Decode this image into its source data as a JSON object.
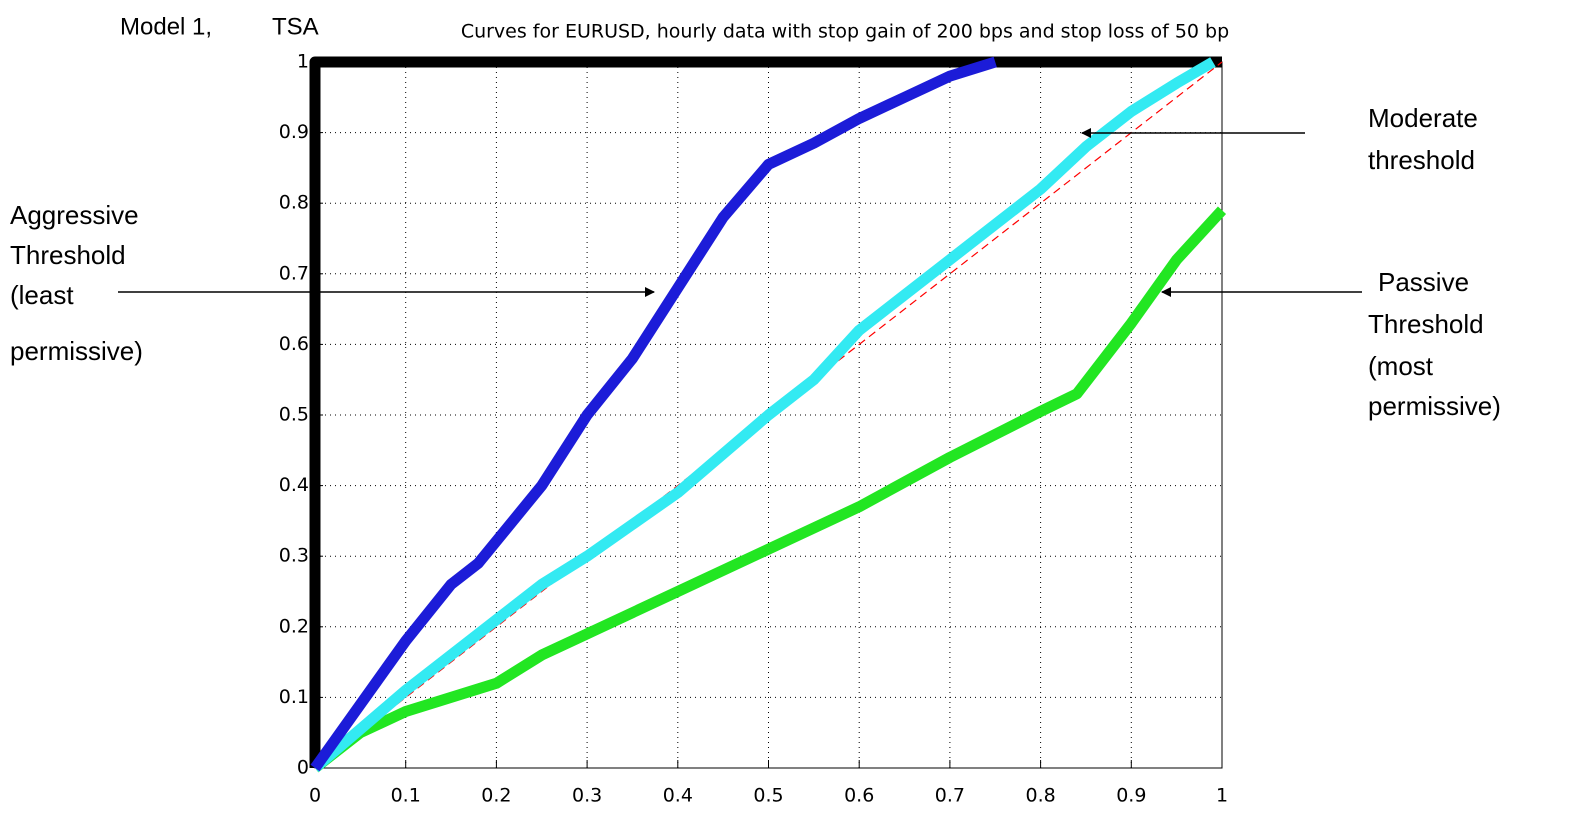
{
  "chart_data": {
    "type": "line",
    "title": "Curves for EURUSD, hourly data with stop gain of 200 bps and stop loss of 50 bp",
    "model": "Model 1,",
    "method": "TSA",
    "xlim": [
      0,
      1
    ],
    "ylim": [
      0,
      1
    ],
    "xticks": [
      0,
      0.1,
      0.2,
      0.3,
      0.4,
      0.5,
      0.6,
      0.7,
      0.8,
      0.9,
      1
    ],
    "yticks": [
      0,
      0.1,
      0.2,
      0.3,
      0.4,
      0.5,
      0.6,
      0.7,
      0.8,
      0.9,
      1
    ],
    "grid": true,
    "series": [
      {
        "color": "#000000",
        "x": [
          0,
          0,
          1
        ],
        "y": [
          0,
          1,
          1
        ]
      },
      {
        "color": "#ff0000",
        "dashed": true,
        "x": [
          0,
          1
        ],
        "y": [
          0,
          1
        ]
      },
      {
        "color": "#22e622",
        "x": [
          0,
          0.05,
          0.1,
          0.2,
          0.25,
          0.3,
          0.4,
          0.5,
          0.6,
          0.7,
          0.8,
          0.84,
          0.9,
          0.95,
          1
        ],
        "y": [
          0,
          0.05,
          0.08,
          0.12,
          0.16,
          0.19,
          0.25,
          0.31,
          0.37,
          0.44,
          0.505,
          0.53,
          0.63,
          0.72,
          0.79
        ]
      },
      {
        "color": "#33eaf2",
        "x": [
          0,
          0.1,
          0.2,
          0.25,
          0.3,
          0.4,
          0.5,
          0.55,
          0.6,
          0.7,
          0.8,
          0.85,
          0.9,
          0.95,
          0.99
        ],
        "y": [
          0,
          0.11,
          0.21,
          0.26,
          0.3,
          0.39,
          0.5,
          0.55,
          0.62,
          0.72,
          0.82,
          0.88,
          0.93,
          0.97,
          1
        ]
      },
      {
        "color": "#1c1cd8",
        "x": [
          0,
          0.05,
          0.1,
          0.15,
          0.18,
          0.25,
          0.3,
          0.35,
          0.4,
          0.45,
          0.5,
          0.55,
          0.6,
          0.65,
          0.7,
          0.75
        ],
        "y": [
          0,
          0.09,
          0.18,
          0.26,
          0.29,
          0.4,
          0.5,
          0.58,
          0.68,
          0.78,
          0.855,
          0.885,
          0.92,
          0.95,
          0.98,
          1
        ]
      }
    ],
    "annotations": {
      "aggressive": [
        "Aggressive",
        "Threshold",
        "(least",
        "permissive)"
      ],
      "moderate": [
        "Moderate",
        "threshold"
      ],
      "passive": [
        "Passive",
        "Threshold",
        "(most",
        "permissive)"
      ]
    }
  }
}
